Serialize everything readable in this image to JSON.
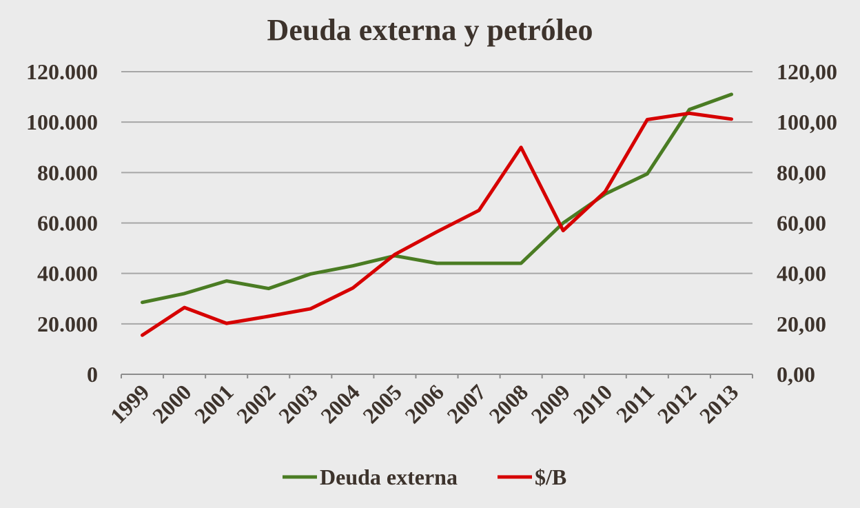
{
  "chart_data": {
    "type": "line",
    "title": "Deuda externa y petróleo",
    "categories": [
      "1999",
      "2000",
      "2001",
      "2002",
      "2003",
      "2004",
      "2005",
      "2006",
      "2007",
      "2008",
      "2009",
      "2010",
      "2011",
      "2012",
      "2013"
    ],
    "y_left": {
      "lim": [
        0,
        120000
      ],
      "ticks": [
        0,
        20000,
        40000,
        60000,
        80000,
        100000,
        120000
      ],
      "tick_labels": [
        "0",
        "20.000",
        "40.000",
        "60.000",
        "80.000",
        "100.000",
        "120.000"
      ]
    },
    "y_right": {
      "lim": [
        0,
        120
      ],
      "ticks": [
        0,
        20,
        40,
        60,
        80,
        100,
        120
      ],
      "tick_labels": [
        "0,00",
        "20,00",
        "40,00",
        "60,00",
        "80,00",
        "100,00",
        "120,00"
      ]
    },
    "grid": true,
    "legend_position": "bottom",
    "series": [
      {
        "name": "Deuda externa",
        "axis": "left",
        "color": "#4a7c23",
        "values": [
          28500,
          32000,
          37000,
          34000,
          39800,
          43000,
          47000,
          44000,
          44000,
          44000,
          60000,
          71500,
          79500,
          105000,
          111000
        ]
      },
      {
        "name": "$/B",
        "axis": "right",
        "color": "#d60000",
        "values": [
          15.5,
          26.5,
          20.2,
          23.0,
          26.0,
          34.2,
          47.5,
          56.5,
          65.0,
          90.0,
          57.0,
          72.5,
          101.0,
          103.5,
          101.2
        ]
      }
    ]
  }
}
